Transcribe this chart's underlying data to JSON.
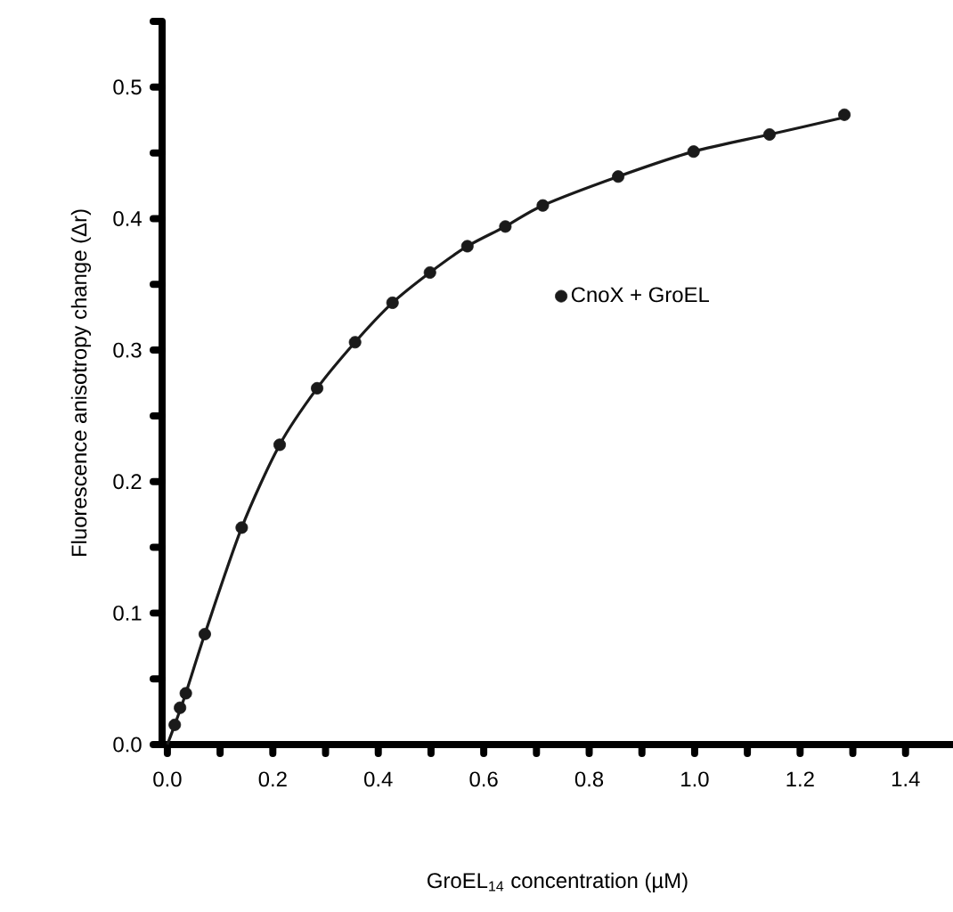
{
  "chart_data": {
    "type": "scatter",
    "xlabel": "GroEL$_{14}$ concentration (µM)",
    "ylabel": "Fluorescence anisotropy change (Δr)",
    "xlim": [
      -0.01,
      1.49
    ],
    "ylim": [
      0,
      0.55
    ],
    "xticks": [
      {
        "value": 0,
        "label": "0.0"
      },
      {
        "value": 0.1,
        "label": null
      },
      {
        "value": 0.2,
        "label": "0.2"
      },
      {
        "value": 0.3,
        "label": null
      },
      {
        "value": 0.4,
        "label": "0.4"
      },
      {
        "value": 0.5,
        "label": null
      },
      {
        "value": 0.6,
        "label": "0.6"
      },
      {
        "value": 0.7,
        "label": null
      },
      {
        "value": 0.8,
        "label": "0.8"
      },
      {
        "value": 0.9,
        "label": null
      },
      {
        "value": 1,
        "label": "1.0"
      },
      {
        "value": 1.1,
        "label": null
      },
      {
        "value": 1.2,
        "label": "1.2"
      },
      {
        "value": 1.3,
        "label": null
      },
      {
        "value": 1.4,
        "label": "1.4"
      }
    ],
    "yticks": [
      {
        "value": 0,
        "label": "0.0"
      },
      {
        "value": 0.05,
        "label": null
      },
      {
        "value": 0.1,
        "label": "0.1"
      },
      {
        "value": 0.15,
        "label": null
      },
      {
        "value": 0.2,
        "label": "0.2"
      },
      {
        "value": 0.25,
        "label": null
      },
      {
        "value": 0.3,
        "label": "0.3"
      },
      {
        "value": 0.35,
        "label": null
      },
      {
        "value": 0.4,
        "label": "0.4"
      },
      {
        "value": 0.45,
        "label": null
      },
      {
        "value": 0.5,
        "label": "0.5"
      },
      {
        "value": 0.55,
        "label": null
      }
    ],
    "legend": "center",
    "grid": false,
    "series": [
      {
        "name": "CnoX + GroEL",
        "marker": "circle",
        "color": "#1a1a1a",
        "x": [
          0.014,
          0.024,
          0.035,
          0.071,
          0.141,
          0.213,
          0.284,
          0.356,
          0.427,
          0.498,
          0.569,
          0.641,
          0.712,
          0.855,
          0.998,
          1.142,
          1.284
        ],
        "values": [
          0.015,
          0.028,
          0.039,
          0.084,
          0.165,
          0.228,
          0.271,
          0.306,
          0.336,
          0.359,
          0.379,
          0.394,
          0.41,
          0.432,
          0.451,
          0.464,
          0.479
        ]
      },
      {
        "type": "line",
        "marker": "none",
        "line_style": "solid",
        "color": "#1a1a1a",
        "x": [
          0,
          0.014,
          0.035,
          0.071,
          0.141,
          0.213,
          0.284,
          0.356,
          0.427,
          0.498,
          0.569,
          0.641,
          0.712,
          0.855,
          0.998,
          1.142,
          1.284
        ],
        "values": [
          0,
          0.015,
          0.039,
          0.084,
          0.165,
          0.228,
          0.271,
          0.306,
          0.336,
          0.359,
          0.379,
          0.394,
          0.41,
          0.432,
          0.451,
          0.464,
          0.477
        ]
      }
    ]
  }
}
